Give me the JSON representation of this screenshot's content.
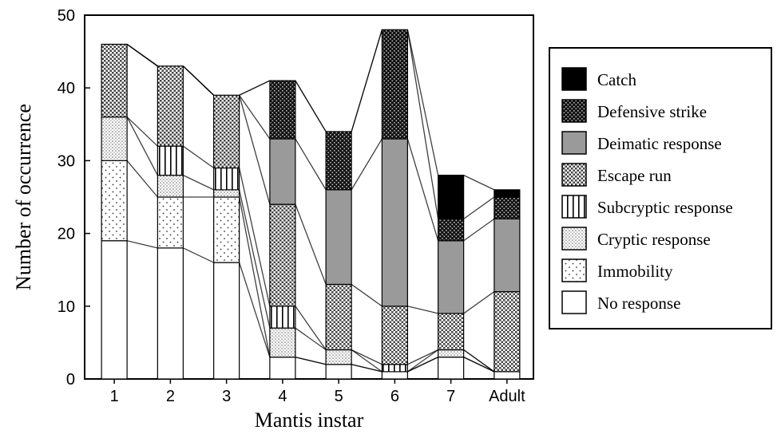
{
  "chart_data": {
    "type": "bar",
    "stacked": true,
    "xlabel": "Mantis instar",
    "ylabel": "Number of occurrence",
    "ylim": [
      0,
      50
    ],
    "yticks": [
      0,
      10,
      20,
      30,
      40,
      50
    ],
    "categories": [
      "1",
      "2",
      "3",
      "4",
      "5",
      "6",
      "7",
      "Adult"
    ],
    "grid": false,
    "legend_position": "right",
    "series": [
      {
        "name": "No response",
        "pattern": "white",
        "values": [
          19,
          18,
          16,
          3,
          2,
          1,
          3,
          1
        ]
      },
      {
        "name": "Immobility",
        "pattern": "sparse-dots",
        "values": [
          11,
          7,
          9,
          0,
          0,
          0,
          0,
          0
        ]
      },
      {
        "name": "Cryptic response",
        "pattern": "fine-dots",
        "values": [
          6,
          3,
          1,
          4,
          2,
          0,
          1,
          0
        ]
      },
      {
        "name": "Subcryptic response",
        "pattern": "vertical-stripes",
        "values": [
          0,
          4,
          3,
          3,
          0,
          1,
          0,
          0
        ]
      },
      {
        "name": "Escape run",
        "pattern": "checker",
        "values": [
          10,
          11,
          10,
          14,
          9,
          8,
          5,
          11
        ]
      },
      {
        "name": "Deimatic response",
        "pattern": "gray",
        "values": [
          0,
          0,
          0,
          9,
          13,
          23,
          10,
          10
        ]
      },
      {
        "name": "Defensive strike",
        "pattern": "dark-checker",
        "values": [
          0,
          0,
          0,
          8,
          8,
          15,
          3,
          3
        ]
      },
      {
        "name": "Catch",
        "pattern": "black",
        "values": [
          0,
          0,
          0,
          0,
          0,
          0,
          6,
          1
        ]
      }
    ]
  }
}
